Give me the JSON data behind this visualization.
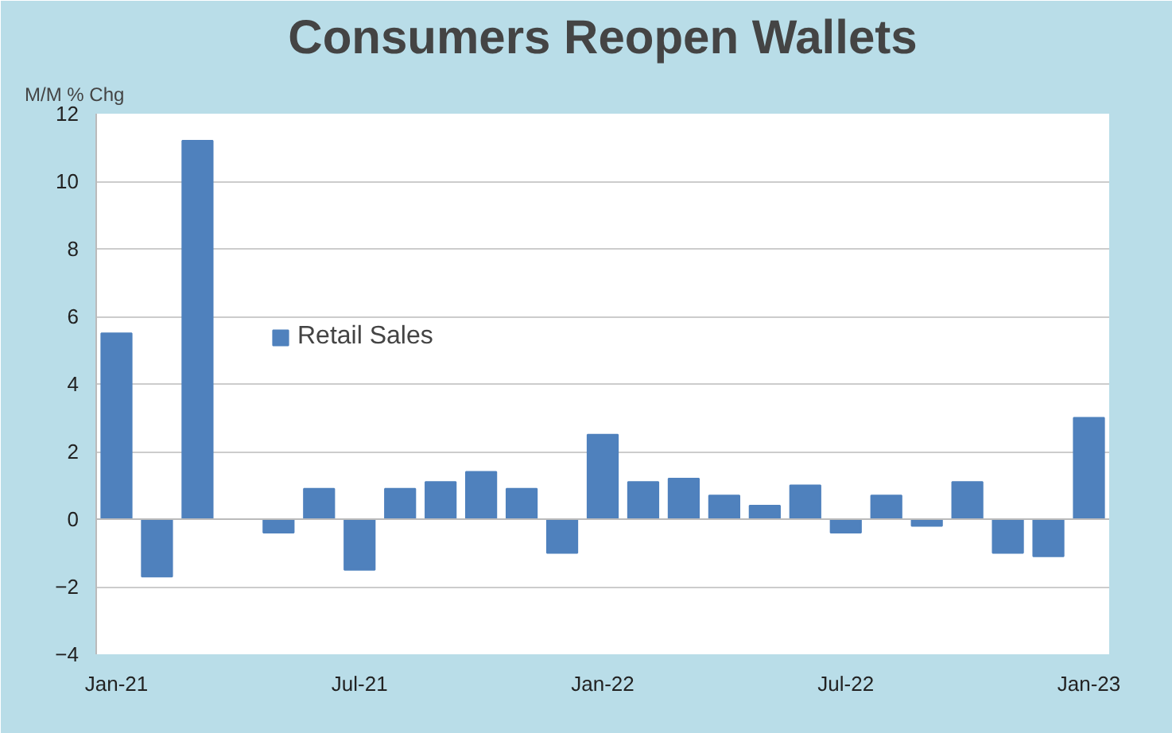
{
  "chart_data": {
    "type": "bar",
    "title": "Consumers Reopen Wallets",
    "ylabel": "M/M % Chg",
    "categories": [
      "Jan-21",
      null,
      null,
      null,
      null,
      null,
      "Jul-21",
      null,
      null,
      null,
      null,
      null,
      "Jan-22",
      null,
      null,
      null,
      null,
      null,
      "Jul-22",
      null,
      null,
      null,
      null,
      null,
      "Jan-23"
    ],
    "series": [
      {
        "name": "Retail Sales",
        "color": "#4f81bd",
        "values": [
          5.5,
          -1.7,
          11.2,
          null,
          -0.4,
          0.9,
          -1.5,
          0.9,
          1.1,
          1.4,
          0.9,
          -1.0,
          2.5,
          1.1,
          1.2,
          0.7,
          0.4,
          1.0,
          -0.4,
          0.7,
          -0.2,
          1.1,
          -1.0,
          -1.1,
          3.0
        ]
      }
    ],
    "ylim": [
      -4,
      12
    ],
    "yticks": [
      -4,
      -2,
      0,
      2,
      4,
      6,
      8,
      10,
      12
    ],
    "grid": "y",
    "legend": "left"
  }
}
